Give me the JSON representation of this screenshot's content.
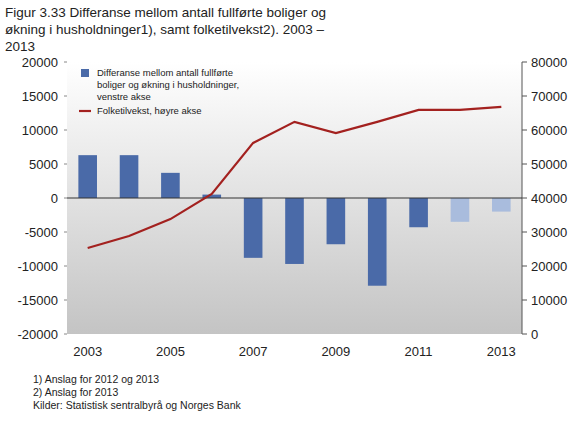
{
  "chart_data": {
    "type": "bar",
    "title": "Figur 3.33 Differanse mellom antall fullførte boliger og økning i husholdninger1), samt folketilvekst2). 2003 – 2013",
    "footnotes": [
      "1) Anslag for 2012 og 2013",
      "2) Anslag for 2013",
      "Kilder: Statistisk sentralbyrå og Norges Bank"
    ],
    "categories": [
      "2003",
      null,
      "2005",
      null,
      "2007",
      null,
      "2009",
      null,
      "2011",
      null,
      "2013"
    ],
    "series": [
      {
        "name": "Differanse mellom antall fullførte boliger og økning i husholdninger, venstre akse",
        "type": "bar",
        "color": "#4a6aa8",
        "colors": [
          "#4a6aa8",
          "#4a6aa8",
          "#4a6aa8",
          "#4a6aa8",
          "#4a6aa8",
          "#4a6aa8",
          "#4a6aa8",
          "#4a6aa8",
          "#4a6aa8",
          "#a9bcdd",
          "#a9bcdd"
        ],
        "values": [
          6300,
          6300,
          3700,
          500,
          -8800,
          -9700,
          -6800,
          -12900,
          -4300,
          -3500,
          -2000
        ]
      },
      {
        "name": "Folketilvekst, høyre akse",
        "type": "line",
        "axis": "y2",
        "color": "#a3211f",
        "line_style": "solid",
        "values": [
          25300,
          28800,
          33800,
          41200,
          56200,
          62400,
          59100,
          62400,
          65900,
          65900,
          66800
        ]
      }
    ],
    "ylim": [
      -20000,
      20000
    ],
    "yticks": [
      -20000,
      -15000,
      -10000,
      -5000,
      0,
      5000,
      10000,
      15000,
      20000
    ],
    "y2lim": [
      0,
      80000
    ],
    "y2ticks": [
      0,
      10000,
      20000,
      30000,
      40000,
      50000,
      60000,
      70000,
      80000
    ],
    "grid": false,
    "legend": "top-left"
  }
}
